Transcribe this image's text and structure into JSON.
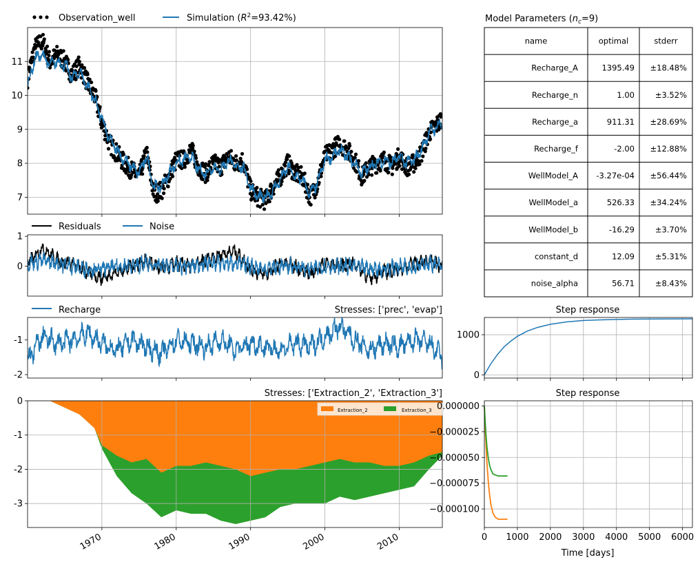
{
  "colors": {
    "obs": "#000000",
    "sim": "#1f77b4",
    "ext2": "#ff7f0e",
    "ext3": "#2ca02c",
    "grid": "#b0b0b0"
  },
  "legend": {
    "observation": "Observation_well",
    "simulation_prefix": "Simulation (",
    "simulation_r": "R",
    "simulation_sup": "2",
    "simulation_suffix": "=93.42%)",
    "residuals": "Residuals",
    "noise": "Noise",
    "recharge": "Recharge",
    "extraction_2": "Extraction_2",
    "extraction_3": "Extraction_3"
  },
  "titles": {
    "params_prefix": "Model Parameters (",
    "params_n": "n",
    "params_sub": "c",
    "params_suffix": "=9)",
    "recharge_stresses": "Stresses: ['prec', 'evap']",
    "extraction_stresses": "Stresses: ['Extraction_2', 'Extraction_3']",
    "step1": "Step response",
    "step2": "Step response",
    "xlabel_days": "Time [days]"
  },
  "params_table": {
    "columns": [
      "name",
      "optimal",
      "stderr"
    ],
    "rows": [
      [
        "Recharge_A",
        "1395.49",
        "±18.48%"
      ],
      [
        "Recharge_n",
        "1.00",
        "±3.52%"
      ],
      [
        "Recharge_a",
        "911.31",
        "±28.69%"
      ],
      [
        "Recharge_f",
        "-2.00",
        "±12.88%"
      ],
      [
        "WellModel_A",
        "-3.27e-04",
        "±56.44%"
      ],
      [
        "WellModel_a",
        "526.33",
        "±34.24%"
      ],
      [
        "WellModel_b",
        "-16.29",
        "±3.70%"
      ],
      [
        "constant_d",
        "12.09",
        "±5.31%"
      ],
      [
        "noise_alpha",
        "56.71",
        "±8.43%"
      ]
    ]
  },
  "chart_data": [
    {
      "type": "line",
      "id": "heads",
      "xlim": [
        1960,
        2015.8
      ],
      "ylim": [
        6.5,
        12.0
      ],
      "yticks": [
        7,
        8,
        9,
        10,
        11
      ],
      "grid": true,
      "legend_placement": "above",
      "series": [
        {
          "name": "Observation_well",
          "style": "points",
          "x": [
            1960.0,
            1961,
            1962,
            1963,
            1964,
            1965,
            1966,
            1967,
            1968,
            1969,
            1970,
            1971,
            1972,
            1973,
            1974,
            1975,
            1976,
            1977,
            1978,
            1979,
            1980,
            1981,
            1982,
            1983,
            1984,
            1985,
            1986,
            1987,
            1988,
            1989,
            1990,
            1991,
            1992,
            1993,
            1994,
            1995,
            1996,
            1997,
            1998,
            1999,
            2000,
            2001,
            2002,
            2003,
            2004,
            2005,
            2006,
            2007,
            2008,
            2009,
            2010,
            2011,
            2012,
            2013,
            2014,
            2015.8
          ],
          "y": [
            10.5,
            11.4,
            11.6,
            11.0,
            11.2,
            11.0,
            10.6,
            10.9,
            10.4,
            10.0,
            9.2,
            8.6,
            8.3,
            8.0,
            7.8,
            7.6,
            8.3,
            7.1,
            7.2,
            7.6,
            8.1,
            8.1,
            8.4,
            7.9,
            7.7,
            8.0,
            7.9,
            8.2,
            8.0,
            8.1,
            7.2,
            7.0,
            6.9,
            7.3,
            7.6,
            8.0,
            7.7,
            7.6,
            7.0,
            7.4,
            8.2,
            8.4,
            8.6,
            8.4,
            8.1,
            7.6,
            7.9,
            8.0,
            8.1,
            7.9,
            8.2,
            7.9,
            8.0,
            8.3,
            8.9,
            9.3
          ]
        },
        {
          "name": "Simulation",
          "style": "line",
          "x": [
            1960.0,
            1961,
            1962,
            1963,
            1964,
            1965,
            1966,
            1967,
            1968,
            1969,
            1970,
            1971,
            1972,
            1973,
            1974,
            1975,
            1976,
            1977,
            1978,
            1979,
            1980,
            1981,
            1982,
            1983,
            1984,
            1985,
            1986,
            1987,
            1988,
            1989,
            1990,
            1991,
            1992,
            1993,
            1994,
            1995,
            1996,
            1997,
            1998,
            1999,
            2000,
            2001,
            2002,
            2003,
            2004,
            2005,
            2006,
            2007,
            2008,
            2009,
            2010,
            2011,
            2012,
            2013,
            2014,
            2015.8
          ],
          "y": [
            10.3,
            11.1,
            11.2,
            10.9,
            11.0,
            10.9,
            10.5,
            10.7,
            10.3,
            9.9,
            9.3,
            8.7,
            8.4,
            8.1,
            7.9,
            7.7,
            8.2,
            7.3,
            7.3,
            7.7,
            8.0,
            8.1,
            8.2,
            7.8,
            7.7,
            7.9,
            7.8,
            8.1,
            7.9,
            7.9,
            7.3,
            7.0,
            7.0,
            7.2,
            7.5,
            7.9,
            7.6,
            7.5,
            7.1,
            7.4,
            8.1,
            8.2,
            8.4,
            8.2,
            8.0,
            7.7,
            7.9,
            8.0,
            8.1,
            8.0,
            8.2,
            8.0,
            8.1,
            8.4,
            8.9,
            9.2
          ]
        }
      ]
    },
    {
      "type": "line",
      "id": "residuals",
      "xlim": [
        1960,
        2015.8
      ],
      "ylim": [
        -1.0,
        1.05
      ],
      "yticks": [
        0,
        1
      ],
      "grid": false,
      "series": [
        {
          "name": "Residuals",
          "x": [
            1960,
            1962,
            1964,
            1966,
            1968,
            1970,
            1972,
            1974,
            1976,
            1978,
            1980,
            1982,
            1984,
            1986,
            1988,
            1990,
            1992,
            1994,
            1996,
            1998,
            2000,
            2002,
            2004,
            2006,
            2008,
            2010,
            2012,
            2014,
            2015.8
          ],
          "y": [
            0.1,
            0.6,
            0.2,
            0.1,
            -0.2,
            -0.4,
            -0.2,
            0.0,
            0.2,
            -0.1,
            0.1,
            0.0,
            0.2,
            0.4,
            0.5,
            -0.1,
            -0.3,
            0.1,
            0.0,
            -0.3,
            0.1,
            0.0,
            0.1,
            -0.4,
            -0.2,
            -0.1,
            0.1,
            0.2,
            0.0
          ]
        },
        {
          "name": "Noise",
          "x": [
            1960,
            1962,
            1964,
            1966,
            1968,
            1970,
            1972,
            1974,
            1976,
            1978,
            1980,
            1982,
            1984,
            1986,
            1988,
            1990,
            1992,
            1994,
            1996,
            1998,
            2000,
            2002,
            2004,
            2006,
            2008,
            2010,
            2012,
            2014,
            2015.8
          ],
          "y": [
            0.1,
            0.2,
            0.1,
            0.0,
            -0.1,
            -0.1,
            0.0,
            0.0,
            0.1,
            0.0,
            0.0,
            0.0,
            0.1,
            0.1,
            0.1,
            0.0,
            -0.1,
            0.0,
            0.0,
            -0.1,
            0.0,
            0.0,
            0.0,
            -0.1,
            -0.1,
            0.0,
            0.0,
            0.1,
            0.0
          ]
        }
      ]
    },
    {
      "type": "line",
      "id": "recharge",
      "xlim": [
        1960,
        2015.8
      ],
      "ylim": [
        -2.1,
        -0.35
      ],
      "yticks": [
        -2,
        -1
      ],
      "grid": false,
      "series": [
        {
          "name": "Recharge",
          "x": [
            1960,
            1962,
            1964,
            1966,
            1968,
            1970,
            1972,
            1974,
            1976,
            1978,
            1980,
            1982,
            1984,
            1986,
            1988,
            1990,
            1992,
            1994,
            1996,
            1998,
            2000,
            2002,
            2004,
            2006,
            2008,
            2010,
            2012,
            2014,
            2015.8
          ],
          "y": [
            -1.6,
            -0.9,
            -1.1,
            -1.0,
            -0.8,
            -1.1,
            -1.3,
            -1.0,
            -1.2,
            -1.4,
            -1.0,
            -1.1,
            -1.2,
            -1.0,
            -1.3,
            -1.1,
            -1.2,
            -1.3,
            -1.1,
            -1.2,
            -0.9,
            -0.6,
            -1.0,
            -1.3,
            -1.1,
            -1.2,
            -1.0,
            -1.1,
            -1.5
          ]
        }
      ]
    },
    {
      "type": "area",
      "id": "extraction",
      "xlim": [
        1960,
        2015.8
      ],
      "ylim": [
        -3.7,
        0
      ],
      "yticks": [
        -3,
        -2,
        -1,
        0
      ],
      "xticks": [
        1970,
        1980,
        1990,
        2000,
        2010
      ],
      "grid": true,
      "legend_placement": "upper right",
      "series": [
        {
          "name": "Extraction_2",
          "x": [
            1960,
            1963,
            1965,
            1967,
            1969,
            1970,
            1972,
            1974,
            1976,
            1978,
            1980,
            1982,
            1984,
            1986,
            1988,
            1990,
            1992,
            1994,
            1996,
            1998,
            2000,
            2002,
            2004,
            2006,
            2008,
            2010,
            2012,
            2014,
            2015.8
          ],
          "y": [
            0,
            0,
            -0.2,
            -0.4,
            -0.8,
            -1.3,
            -1.6,
            -1.8,
            -1.7,
            -2.1,
            -1.9,
            -1.9,
            -1.8,
            -1.9,
            -2.0,
            -2.2,
            -2.1,
            -2.0,
            -2.0,
            -1.9,
            -1.8,
            -1.7,
            -1.8,
            -1.8,
            -1.9,
            -1.9,
            -1.8,
            -1.6,
            -1.5
          ]
        },
        {
          "name": "Extraction_3",
          "x": [
            1960,
            1963,
            1965,
            1967,
            1969,
            1970,
            1972,
            1974,
            1976,
            1978,
            1980,
            1982,
            1984,
            1986,
            1988,
            1990,
            1992,
            1994,
            1996,
            1998,
            2000,
            2002,
            2004,
            2006,
            2008,
            2010,
            2012,
            2014,
            2015.8
          ],
          "y": [
            0,
            0,
            -0.2,
            -0.4,
            -0.8,
            -1.4,
            -2.2,
            -2.7,
            -3.0,
            -3.4,
            -3.2,
            -3.3,
            -3.3,
            -3.5,
            -3.6,
            -3.5,
            -3.4,
            -3.1,
            -3.0,
            -3.0,
            -3.0,
            -2.8,
            -2.9,
            -2.8,
            -2.7,
            -2.6,
            -2.5,
            -2.0,
            -1.6
          ]
        }
      ]
    },
    {
      "type": "line",
      "id": "step_recharge",
      "xlim": [
        0,
        6300
      ],
      "ylim": [
        -80,
        1430
      ],
      "yticks": [
        0,
        1000
      ],
      "grid": true,
      "series": [
        {
          "name": "Recharge",
          "x": [
            0,
            200,
            400,
            600,
            800,
            1000,
            1300,
            1600,
            2000,
            2500,
            3000,
            3500,
            4000,
            4500,
            5000,
            5500,
            6300
          ],
          "y": [
            0,
            280,
            510,
            700,
            840,
            960,
            1090,
            1180,
            1260,
            1320,
            1355,
            1370,
            1380,
            1388,
            1392,
            1394,
            1395
          ]
        }
      ]
    },
    {
      "type": "line",
      "id": "step_wells",
      "xlim": [
        0,
        6300
      ],
      "ylim": [
        -0.000118,
        5e-06
      ],
      "yticks": [
        -0.0001,
        -7.5e-05,
        -5e-05,
        -2.5e-05,
        0
      ],
      "xticks": [
        0,
        1000,
        2000,
        3000,
        4000,
        5000,
        6000
      ],
      "xlabel": "Time [days]",
      "grid": true,
      "series": [
        {
          "name": "Extraction_2",
          "x": [
            0,
            25,
            50,
            80,
            120,
            160,
            200,
            260,
            330,
            420,
            520,
            620,
            700
          ],
          "y": [
            0,
            -2e-05,
            -3.8e-05,
            -5.6e-05,
            -7.4e-05,
            -8.7e-05,
            -9.6e-05,
            -0.000104,
            -0.000108,
            -0.00011,
            -0.00011,
            -0.00011,
            -0.00011
          ]
        },
        {
          "name": "Extraction_3",
          "x": [
            0,
            25,
            50,
            80,
            120,
            160,
            200,
            260,
            330,
            420,
            520,
            620,
            700
          ],
          "y": [
            0,
            -1.5e-05,
            -2.8e-05,
            -4e-05,
            -5.1e-05,
            -5.8e-05,
            -6.2e-05,
            -6.6e-05,
            -6.7e-05,
            -6.8e-05,
            -6.8e-05,
            -6.8e-05,
            -6.8e-05
          ]
        }
      ]
    }
  ]
}
